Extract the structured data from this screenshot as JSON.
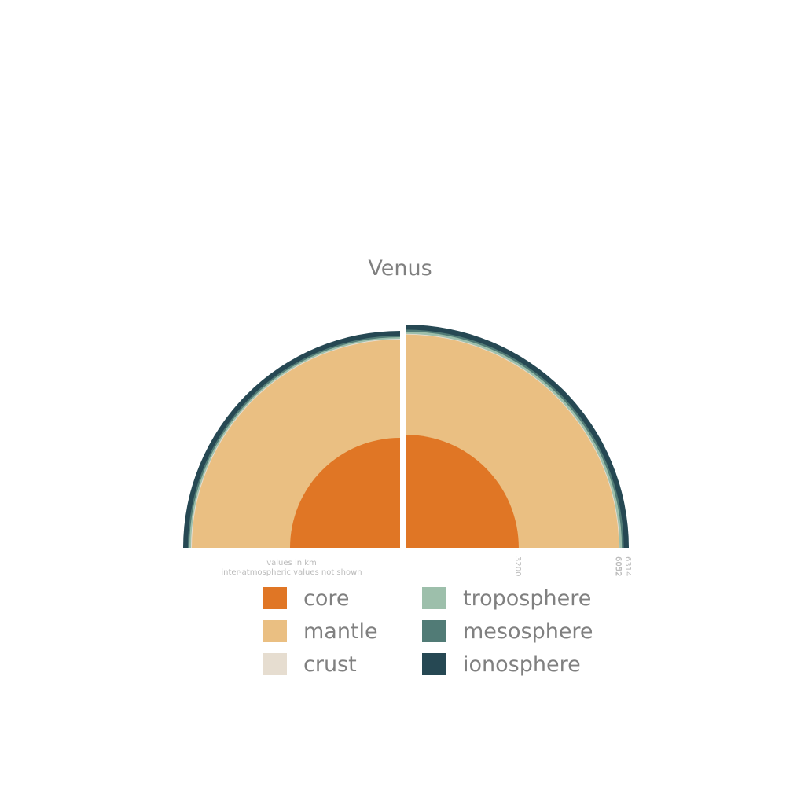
{
  "title": "Venus",
  "notes": {
    "units": "values in km",
    "omitted": "inter-atmospheric values not shown"
  },
  "colors": {
    "core": "#e07625",
    "mantle": "#eabf82",
    "crust": "#e6ddd0",
    "troposphere": "#9dbfab",
    "mesosphere": "#517b76",
    "ionosphere": "#264853",
    "text": "#808080",
    "tick_text": "#bbbbbb",
    "divider": "#ffffff"
  },
  "layers": [
    {
      "key": "core",
      "label": "core",
      "outer_km": 3200
    },
    {
      "key": "mantle",
      "label": "mantle",
      "outer_km": 6032
    },
    {
      "key": "crust",
      "label": "crust",
      "outer_km": 6052
    },
    {
      "key": "troposphere",
      "label": "troposphere",
      "outer_km": 6117
    },
    {
      "key": "mesosphere",
      "label": "mesosphere",
      "outer_km": 6172
    },
    {
      "key": "ionosphere",
      "label": "ionosphere",
      "outer_km": 6314
    }
  ],
  "radius_labels": [
    "3200",
    "6032",
    "6052",
    "6314"
  ],
  "legend": {
    "columns": [
      [
        {
          "label": "core",
          "color": "#e07625"
        },
        {
          "label": "mantle",
          "color": "#eabf82"
        },
        {
          "label": "crust",
          "color": "#e6ddd0"
        }
      ],
      [
        {
          "label": "troposphere",
          "color": "#9dbfab"
        },
        {
          "label": "mesosphere",
          "color": "#517b76"
        },
        {
          "label": "ionosphere",
          "color": "#264853"
        }
      ]
    ]
  }
}
